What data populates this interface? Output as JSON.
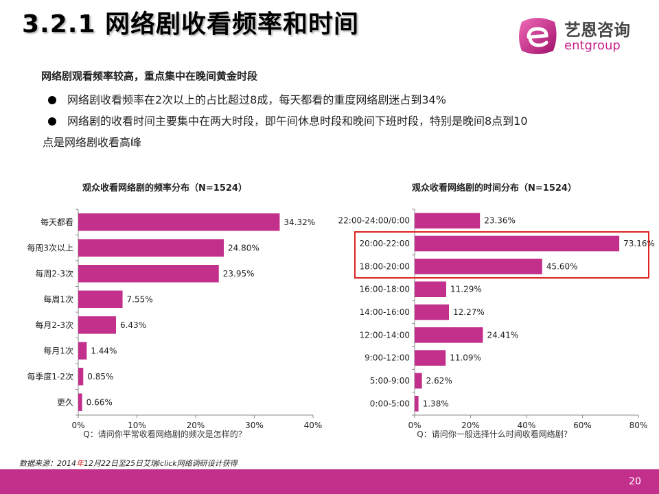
{
  "page": {
    "title": "3.2.1 网络剧收看频率和时间",
    "page_number": "20",
    "source_prefix": "数据来源：2014",
    "source_year_char": "年",
    "source_suffix": "12月22日至25日艾瑞iclick网络调研设计获得"
  },
  "logo": {
    "cn": "艺恩咨询",
    "en": "entgroup"
  },
  "summary": {
    "heading": "网络剧观看频率较高，重点集中在晚间黄金时段",
    "bullet1": "网络剧收看频率在2次以上的占比超过8成，每天都看的重度网络剧迷占到34%",
    "bullet2": "网络剧的收看时间主要集中在两大时段，即午间休息时段和晚间下班时段，特别是晚间8点到10",
    "bullet2_cont": "点是网络剧收看高峰"
  },
  "colors": {
    "bar": "#c2308c",
    "footer": "#c2308c",
    "highlight": "#e02020"
  },
  "chart_data": [
    {
      "type": "bar",
      "orientation": "horizontal",
      "title": "观众收看网络剧的频率分布（N=1524）",
      "question": "Q：请问你平常收看网络剧的频次是怎样的？",
      "categories": [
        "每天都看",
        "每周3次以上",
        "每周2-3次",
        "每周1次",
        "每月2-3次",
        "每月1次",
        "每季度1-2次",
        "更久"
      ],
      "values": [
        34.32,
        24.8,
        23.95,
        7.55,
        6.43,
        1.44,
        0.85,
        0.66
      ],
      "value_labels": [
        "34.32%",
        "24.80%",
        "23.95%",
        "7.55%",
        "6.43%",
        "1.44%",
        "0.85%",
        "0.66%"
      ],
      "xlim": [
        0,
        40
      ],
      "xticks": [
        "0%",
        "10%",
        "20%",
        "30%",
        "40%"
      ],
      "grid": false
    },
    {
      "type": "bar",
      "orientation": "horizontal",
      "title": "观众收看网络剧的时间分布（N=1524）",
      "question": "Q：请问你一般选择什么时间收看网络剧？",
      "categories": [
        "22:00-24:00/0:00",
        "20:00-22:00",
        "18:00-20:00",
        "16:00-18:00",
        "14:00-16:00",
        "12:00-14:00",
        "9:00-12:00",
        "5:00-9:00",
        "0:00-5:00"
      ],
      "values": [
        23.36,
        73.16,
        45.6,
        11.29,
        12.27,
        24.41,
        11.09,
        2.62,
        1.38
      ],
      "value_labels": [
        "23.36%",
        "73.16%",
        "45.60%",
        "11.29%",
        "12.27%",
        "24.41%",
        "11.09%",
        "2.62%",
        "1.38%"
      ],
      "xlim": [
        0,
        80
      ],
      "xticks": [
        "0%",
        "20%",
        "40%",
        "60%",
        "80%"
      ],
      "highlighted": [
        "20:00-22:00",
        "18:00-20:00"
      ],
      "grid": false
    }
  ]
}
